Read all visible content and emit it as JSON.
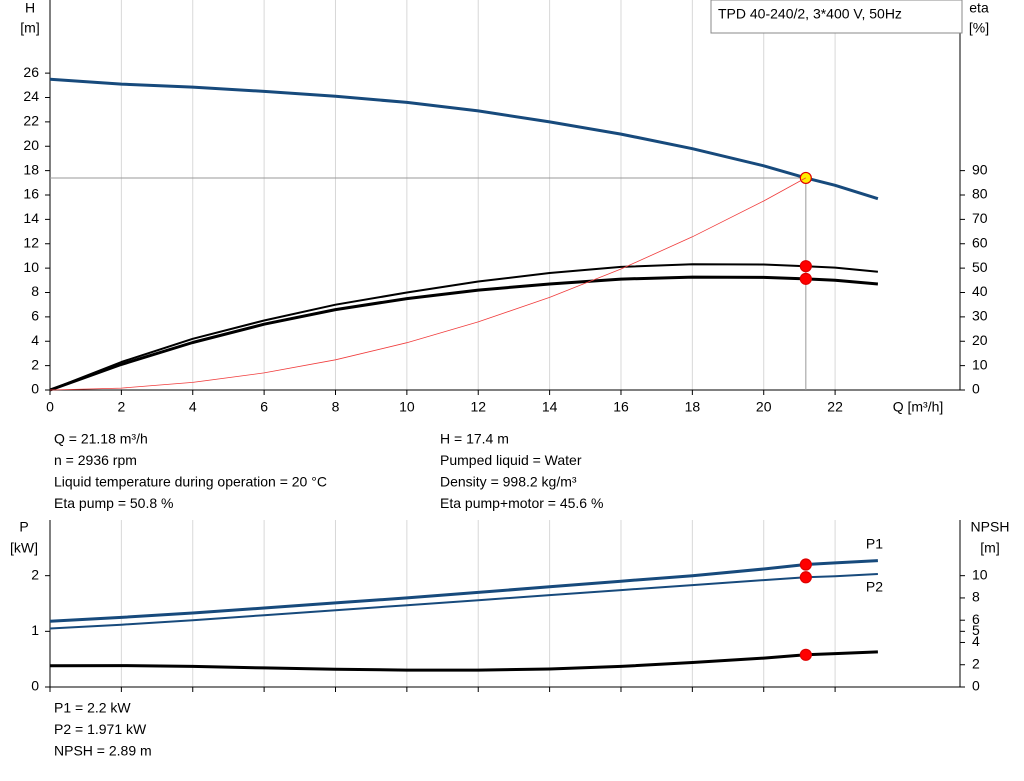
{
  "chart_data": [
    {
      "type": "line",
      "title": "TPD 40-240/2, 3*400 V, 50Hz",
      "ylabel": "H",
      "yunit": "[m]",
      "y2label": "eta",
      "y2unit": "[%]",
      "xlabel": "Q [m³/h]",
      "x": [
        0,
        2,
        4,
        6,
        8,
        10,
        12,
        14,
        16,
        18,
        20,
        21.18,
        22,
        23.2
      ],
      "xlim": [
        0,
        25.5
      ],
      "xticks": [
        0,
        2,
        4,
        6,
        8,
        10,
        12,
        14,
        16,
        18,
        20,
        22
      ],
      "show_xtick_labels": true,
      "ylim": [
        0,
        32
      ],
      "yticks": [
        0,
        2,
        4,
        6,
        8,
        10,
        12,
        14,
        16,
        18,
        20,
        22,
        24,
        26
      ],
      "y2lim": [
        0,
        160
      ],
      "y2ticks": [
        0,
        10,
        20,
        30,
        40,
        50,
        60,
        70,
        80,
        90
      ],
      "grid": true,
      "operating_point": {
        "q": 21.18,
        "h": 17.4
      },
      "series": [
        {
          "color": "#174a7c",
          "linewidth": 3,
          "marker_color": "#ffee00",
          "values": [
            25.5,
            25.1,
            24.85,
            24.5,
            24.1,
            23.6,
            22.9,
            22.0,
            21.0,
            19.8,
            18.4,
            17.4,
            16.8,
            15.7
          ]
        },
        {
          "color": "#000000",
          "linewidth": 2,
          "marker_color": "#ff0000",
          "axis": "y2",
          "values": [
            0,
            11.5,
            21,
            28.5,
            35,
            40,
            44.5,
            48,
            50.5,
            51.6,
            51.5,
            50.8,
            50.2,
            48.5
          ]
        },
        {
          "color": "#000000",
          "linewidth": 3,
          "marker_color": "#ff0000",
          "axis": "y2",
          "values": [
            0,
            10.5,
            19.5,
            27,
            33,
            37.5,
            41,
            43.5,
            45.5,
            46.3,
            46.2,
            45.6,
            45,
            43.5
          ]
        },
        {
          "color": "#f03c3c",
          "linewidth": 0.8,
          "values": [
            0,
            0.155,
            0.62,
            1.4,
            2.48,
            3.88,
            5.59,
            7.6,
            9.93,
            12.57,
            15.51,
            17.4,
            null,
            null
          ]
        }
      ],
      "info": [
        [
          "Q = 21.18 m³/h",
          "n = 2936 rpm",
          "Liquid temperature during operation = 20 °C",
          "Eta pump = 50.8 %"
        ],
        [
          "H = 17.4 m",
          "Pumped liquid = Water",
          "Density = 998.2 kg/m³",
          "Eta pump+motor = 45.6 %"
        ]
      ]
    },
    {
      "type": "line",
      "ylabel": "P",
      "yunit": "[kW]",
      "y2label": "NPSH",
      "y2unit": "[m]",
      "x": [
        0,
        2,
        4,
        6,
        8,
        10,
        12,
        14,
        16,
        18,
        20,
        21.18,
        22,
        23.2
      ],
      "xlim": [
        0,
        25.5
      ],
      "xticks": [
        0,
        2,
        4,
        6,
        8,
        10,
        12,
        14,
        16,
        18,
        20,
        22
      ],
      "show_xtick_labels": false,
      "ylim": [
        0,
        3
      ],
      "yticks": [
        0,
        1,
        2
      ],
      "y2lim": [
        0,
        15
      ],
      "y2ticks": [
        0,
        2,
        4,
        5,
        6,
        8,
        10
      ],
      "grid": true,
      "operating_point": {
        "q": 21.18
      },
      "series": [
        {
          "name": "P1",
          "color": "#174a7c",
          "linewidth": 3,
          "marker_color": "#ff0000",
          "values": [
            1.18,
            1.25,
            1.33,
            1.42,
            1.51,
            1.6,
            1.7,
            1.8,
            1.9,
            2.0,
            2.12,
            2.2,
            2.23,
            2.27
          ]
        },
        {
          "name": "P2",
          "color": "#174a7c",
          "linewidth": 2,
          "marker_color": "#ff0000",
          "values": [
            1.05,
            1.12,
            1.2,
            1.29,
            1.38,
            1.47,
            1.56,
            1.65,
            1.74,
            1.83,
            1.92,
            1.971,
            1.99,
            2.03
          ]
        },
        {
          "color": "#000000",
          "linewidth": 3,
          "marker_color": "#ff0000",
          "axis": "y2",
          "values": [
            1.9,
            1.92,
            1.85,
            1.72,
            1.6,
            1.52,
            1.52,
            1.62,
            1.85,
            2.2,
            2.6,
            2.89,
            3.0,
            3.15
          ]
        }
      ],
      "info": [
        [
          "P1 = 2.2 kW",
          "P2 = 1.971 kW",
          "NPSH = 2.89 m"
        ]
      ]
    }
  ]
}
